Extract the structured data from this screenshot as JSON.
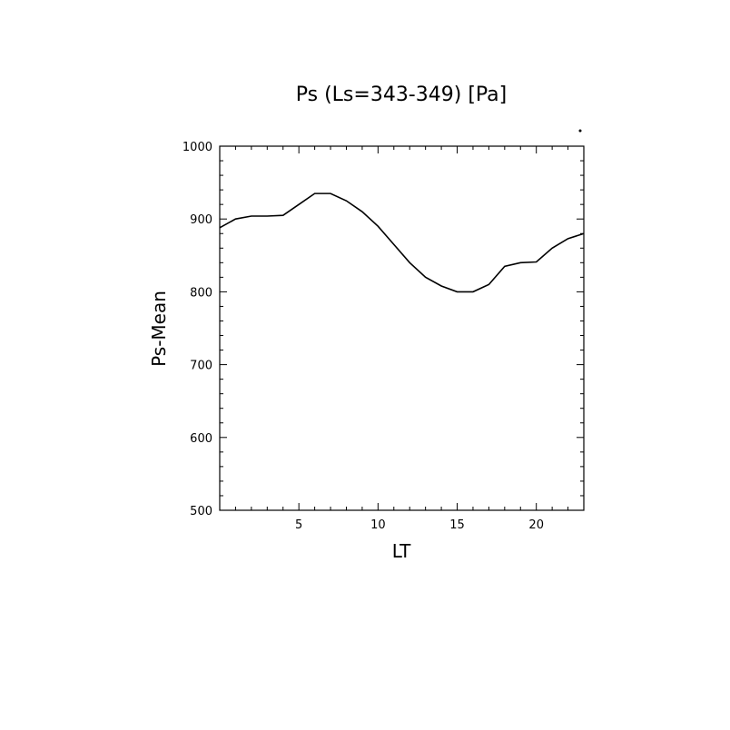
{
  "chart_data": {
    "type": "line",
    "title": "Ps (Ls=343-349) [Pa]",
    "xlabel": "LT",
    "ylabel": "Ps-Mean",
    "xlim": [
      0,
      23
    ],
    "ylim": [
      500,
      1000
    ],
    "xticks": [
      5,
      10,
      15,
      20
    ],
    "yticks": [
      500,
      600,
      700,
      800,
      900,
      1000
    ],
    "grid": false,
    "series": [
      {
        "x": [
          0,
          1,
          2,
          3,
          4,
          5,
          6,
          7,
          8,
          9,
          10,
          11,
          12,
          13,
          14,
          15,
          16,
          17,
          18,
          19,
          20,
          21,
          22,
          23
        ],
        "y": [
          888,
          900,
          904,
          904,
          905,
          920,
          935,
          935,
          925,
          910,
          890,
          865,
          840,
          820,
          808,
          800,
          800,
          810,
          835,
          840,
          841,
          860,
          873,
          880
        ]
      }
    ]
  }
}
